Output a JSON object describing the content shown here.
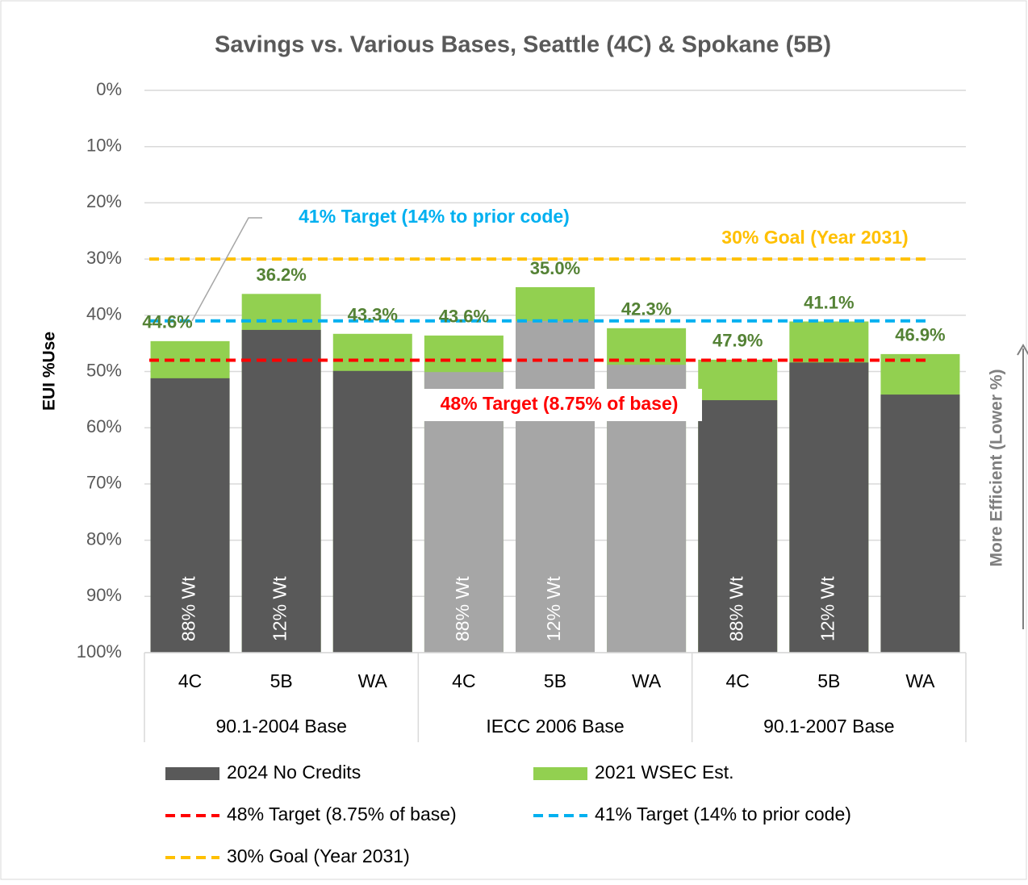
{
  "chart_data": {
    "type": "bar",
    "title": "Savings vs. Various Bases, Seattle (4C) & Spokane (5B)",
    "y_label": "EUI %Use",
    "side_annotation": "More Efficient (Lower %)",
    "categories": [
      "4C",
      "5B",
      "WA",
      "4C",
      "5B",
      "WA",
      "4C",
      "5B",
      "WA"
    ],
    "groups": [
      "90.1-2004 Base",
      "IECC 2006 Base",
      "90.1-2007 Base"
    ],
    "bar_annotations": [
      "88% Wt",
      "12% Wt",
      null,
      "88% Wt",
      "12% Wt",
      null,
      "88% Wt",
      "12% Wt",
      null
    ],
    "series": [
      {
        "name": "2021 WSEC Est.",
        "color": "#92d050",
        "values": [
          44.6,
          36.2,
          43.3,
          43.6,
          35.0,
          42.3,
          47.9,
          41.1,
          46.9
        ],
        "value_labels": [
          "44.6%",
          "36.2%",
          "43.3%",
          "43.6%",
          "35.0%",
          "42.3%",
          "47.9%",
          "41.1%",
          "46.9%"
        ],
        "label_color": "#548235"
      },
      {
        "name": "2024 No Credits",
        "color": "#595959",
        "values": [
          51.2,
          42.6,
          49.9,
          50.1,
          41.0,
          48.8,
          55.1,
          48.4,
          54.1
        ],
        "point_colors": [
          "#595959",
          "#595959",
          "#595959",
          "#a6a6a6",
          "#a6a6a6",
          "#a6a6a6",
          "#595959",
          "#595959",
          "#595959"
        ]
      }
    ],
    "reference_lines": [
      {
        "name": "48% Target (8.75% of base)",
        "value": 48,
        "color": "#ff0000"
      },
      {
        "name": "41% Target (14% to prior code)",
        "value": 41,
        "color": "#00b0f0"
      },
      {
        "name": "30% Goal (Year 2031)",
        "value": 30,
        "color": "#ffc000"
      }
    ],
    "ylim": [
      0,
      100
    ],
    "y_inverted": true,
    "yticks": [
      {
        "value": 0,
        "label": "0%"
      },
      {
        "value": 10,
        "label": "10%"
      },
      {
        "value": 20,
        "label": "20%"
      },
      {
        "value": 30,
        "label": "30%"
      },
      {
        "value": 40,
        "label": "40%"
      },
      {
        "value": 50,
        "label": "50%"
      },
      {
        "value": 60,
        "label": "60%"
      },
      {
        "value": 70,
        "label": "70%"
      },
      {
        "value": 80,
        "label": "80%"
      },
      {
        "value": 90,
        "label": "90%"
      },
      {
        "value": 100,
        "label": "100%"
      }
    ],
    "grid": true
  }
}
